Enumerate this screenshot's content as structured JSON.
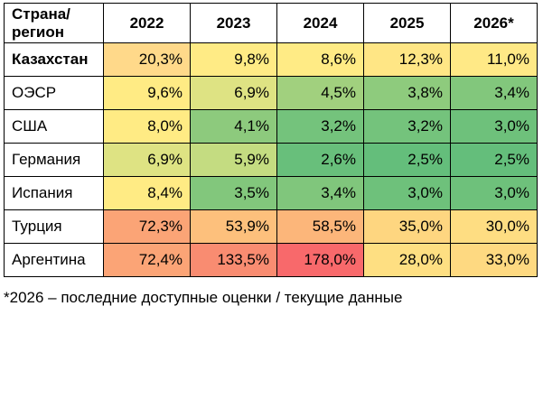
{
  "chart_data": {
    "type": "heatmap",
    "corner_label_line1": "Страна/",
    "corner_label_line2": "регион",
    "columns": [
      "2022",
      "2023",
      "2024",
      "2025",
      "2026*"
    ],
    "rows": [
      {
        "name": "Казахстан",
        "bold": true,
        "values": [
          "20,3%",
          "9,8%",
          "8,6%",
          "12,3%",
          "11,0%"
        ],
        "colors": [
          "#FFD98A",
          "#FFEB85",
          "#FFEB85",
          "#FFE685",
          "#FFE986"
        ]
      },
      {
        "name": "ОЭСР",
        "bold": false,
        "values": [
          "9,6%",
          "6,9%",
          "4,5%",
          "3,8%",
          "3,4%"
        ],
        "colors": [
          "#FFEB84",
          "#DEE383",
          "#A1D07E",
          "#8ECB7D",
          "#82C77C"
        ]
      },
      {
        "name": "США",
        "bold": false,
        "values": [
          "8,0%",
          "4,1%",
          "3,2%",
          "3,2%",
          "3,0%"
        ],
        "colors": [
          "#FFEB84",
          "#8DCA7D",
          "#74C37C",
          "#74C37C",
          "#6EC17B"
        ]
      },
      {
        "name": "Германия",
        "bold": false,
        "values": [
          "6,9%",
          "5,9%",
          "2,6%",
          "2,5%",
          "2,5%"
        ],
        "colors": [
          "#DEE383",
          "#C4DC81",
          "#68BF7B",
          "#64BE7B",
          "#64BE7B"
        ]
      },
      {
        "name": "Испания",
        "bold": false,
        "values": [
          "8,4%",
          "3,5%",
          "3,4%",
          "3,0%",
          "3,0%"
        ],
        "colors": [
          "#FFEB84",
          "#82C77C",
          "#80C67C",
          "#6EC17B",
          "#6EC17B"
        ]
      },
      {
        "name": "Турция",
        "bold": false,
        "values": [
          "72,3%",
          "53,9%",
          "58,5%",
          "35,0%",
          "30,0%"
        ],
        "colors": [
          "#FBA476",
          "#FDC07C",
          "#FCB67A",
          "#FED680",
          "#FEDD82"
        ]
      },
      {
        "name": "Аргентина",
        "bold": false,
        "values": [
          "72,4%",
          "133,5%",
          "178,0%",
          "28,0%",
          "33,0%"
        ],
        "colors": [
          "#FBA476",
          "#F98C71",
          "#F8696B",
          "#FEDF82",
          "#FED981"
        ]
      }
    ]
  },
  "footnote": "*2026 – последние доступные оценки / текущие данные"
}
